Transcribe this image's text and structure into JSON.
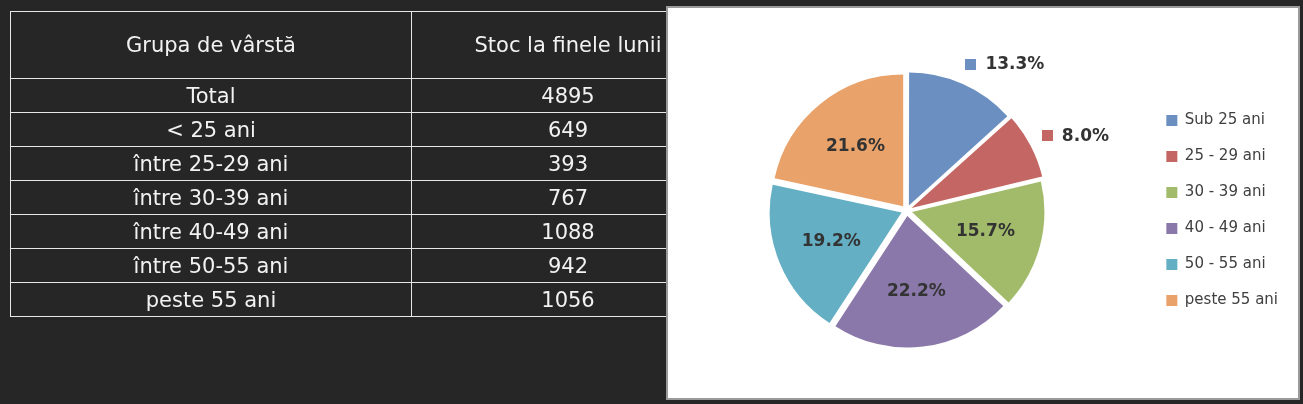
{
  "chart_data": [
    {
      "type": "other",
      "annotations": [
        "Grupa de vârstă",
        "Stoc la finele lunii",
        "Total",
        "4895",
        "< 25 ani",
        "649",
        "între 25-29 ani",
        "393",
        "între 30-39 ani",
        "767",
        "între 40-49 ani",
        "1088",
        "între 50-55 ani",
        "942",
        "peste 55 ani",
        "1056"
      ]
    },
    {
      "type": "pie",
      "categories": [
        "Sub 25 ani",
        "25 - 29 ani",
        "30 - 39 ani",
        "40 - 49 ani",
        "50 - 55 ani",
        "peste 55 ani"
      ],
      "values": [
        13.3,
        8.0,
        15.7,
        22.2,
        19.2,
        21.6
      ],
      "colors": [
        "#6b8fc0",
        "#c46663",
        "#a2bb6b",
        "#8b78aa",
        "#64afc3",
        "#e9a26a"
      ],
      "value_labels": [
        "13.3%",
        "8.0%",
        "15.7%",
        "22.2%",
        "19.2%",
        "21.6%"
      ],
      "legend": "right"
    }
  ]
}
